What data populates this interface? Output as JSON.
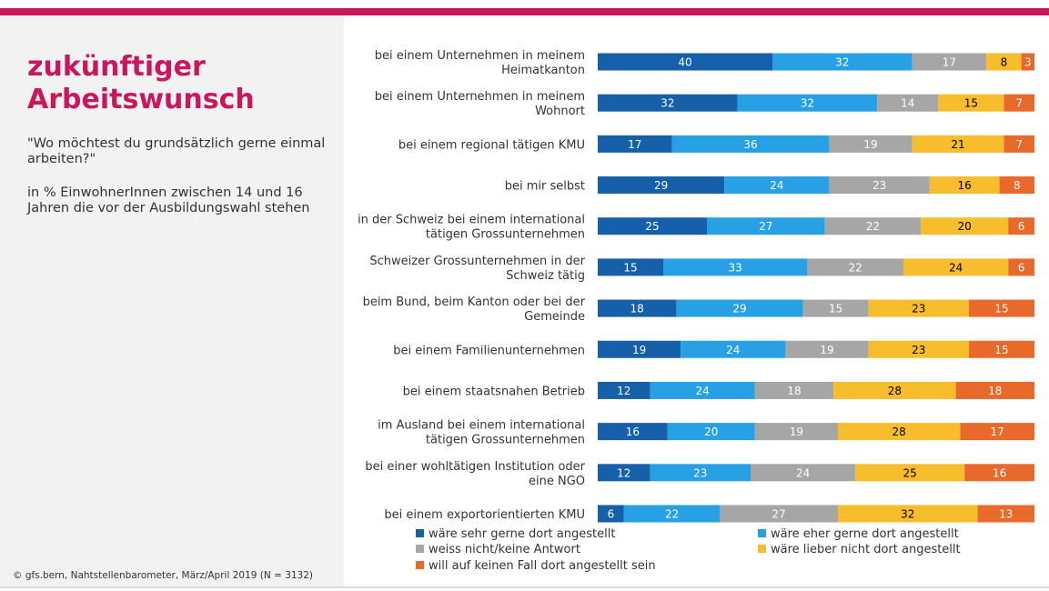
{
  "header": {
    "title_line1": "zukünftiger",
    "title_line2": "Arbeitswunsch",
    "question": "\"Wo möchtest du grundsätzlich gerne einmal arbeiten?\"",
    "description": "in % EinwohnerInnen zwischen 14 und 16 Jahren die vor der Ausbildungswahl stehen"
  },
  "footer": {
    "source": "© gfs.bern, Nahtstellenbarometer, März/April 2019 (N = 3132)"
  },
  "colors": {
    "accent": "#c8175d",
    "panel": "#f2f2f2"
  },
  "chart_data": {
    "type": "bar",
    "orientation": "horizontal",
    "stacked": true,
    "unit": "%",
    "categories": [
      [
        "bei einem Unternehmen in meinem",
        "Heimatkanton"
      ],
      [
        "bei einem Unternehmen in meinem",
        "Wohnort"
      ],
      [
        "bei einem regional tätigen KMU"
      ],
      [
        "bei mir selbst"
      ],
      [
        "in der Schweiz bei einem international",
        "tätigen Grossunternehmen"
      ],
      [
        "Schweizer Grossunternehmen in der",
        "Schweiz tätig"
      ],
      [
        "beim Bund, beim Kanton oder bei der",
        "Gemeinde"
      ],
      [
        "bei einem Familienunternehmen"
      ],
      [
        "bei einem staatsnahen Betrieb"
      ],
      [
        "im Ausland bei einem international",
        "tätigen Grossunternehmen"
      ],
      [
        "bei einer wohltätigen Institution oder",
        "eine NGO"
      ],
      [
        "bei einem exportorientierten KMU"
      ]
    ],
    "series": [
      {
        "name": "wäre sehr gerne dort angestellt",
        "color": "#1560a8",
        "label_color": "#ffffff",
        "values": [
          40,
          32,
          17,
          29,
          25,
          15,
          18,
          19,
          12,
          16,
          12,
          6
        ]
      },
      {
        "name": "wäre eher gerne dort angestellt",
        "color": "#28a0e6",
        "label_color": "#ffffff",
        "values": [
          32,
          32,
          36,
          24,
          27,
          33,
          29,
          24,
          24,
          20,
          23,
          22
        ]
      },
      {
        "name": "weiss nicht/keine Antwort",
        "color": "#a6a6a6",
        "label_color": "#ffffff",
        "values": [
          17,
          14,
          19,
          23,
          22,
          22,
          15,
          19,
          18,
          19,
          24,
          27
        ]
      },
      {
        "name": "wäre lieber nicht dort angestellt",
        "color": "#f7bd2c",
        "label_color": "#000000",
        "values": [
          8,
          15,
          21,
          16,
          20,
          24,
          23,
          23,
          28,
          28,
          25,
          32
        ]
      },
      {
        "name": "will auf keinen Fall dort angestellt sein",
        "color": "#e8692a",
        "label_color": "#ffffff",
        "values": [
          3,
          7,
          7,
          8,
          6,
          6,
          15,
          15,
          18,
          17,
          16,
          13
        ]
      }
    ],
    "legend_position": "bottom",
    "grid": false
  }
}
